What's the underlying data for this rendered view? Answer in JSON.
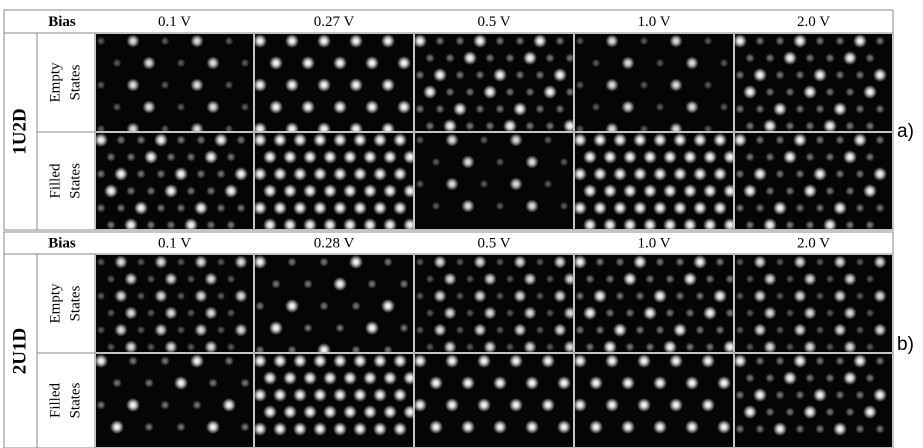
{
  "figures": [
    {
      "label": "a)",
      "structure": "1U2D",
      "bias_header": "Bias",
      "biases": [
        "0.1 V",
        "0.27 V",
        "0.5 V",
        "1.0 V",
        "2.0 V"
      ],
      "rows": [
        [
          "Empty",
          "States"
        ],
        [
          "Filled",
          "States"
        ]
      ]
    },
    {
      "label": "b)",
      "structure": "2U1D",
      "bias_header": "Bias",
      "biases": [
        "0.1 V",
        "0.28 V",
        "0.5 V",
        "1.0 V",
        "2.0 V"
      ],
      "rows": [
        [
          "Empty",
          "States"
        ],
        [
          "Filled",
          "States"
        ]
      ]
    }
  ]
}
